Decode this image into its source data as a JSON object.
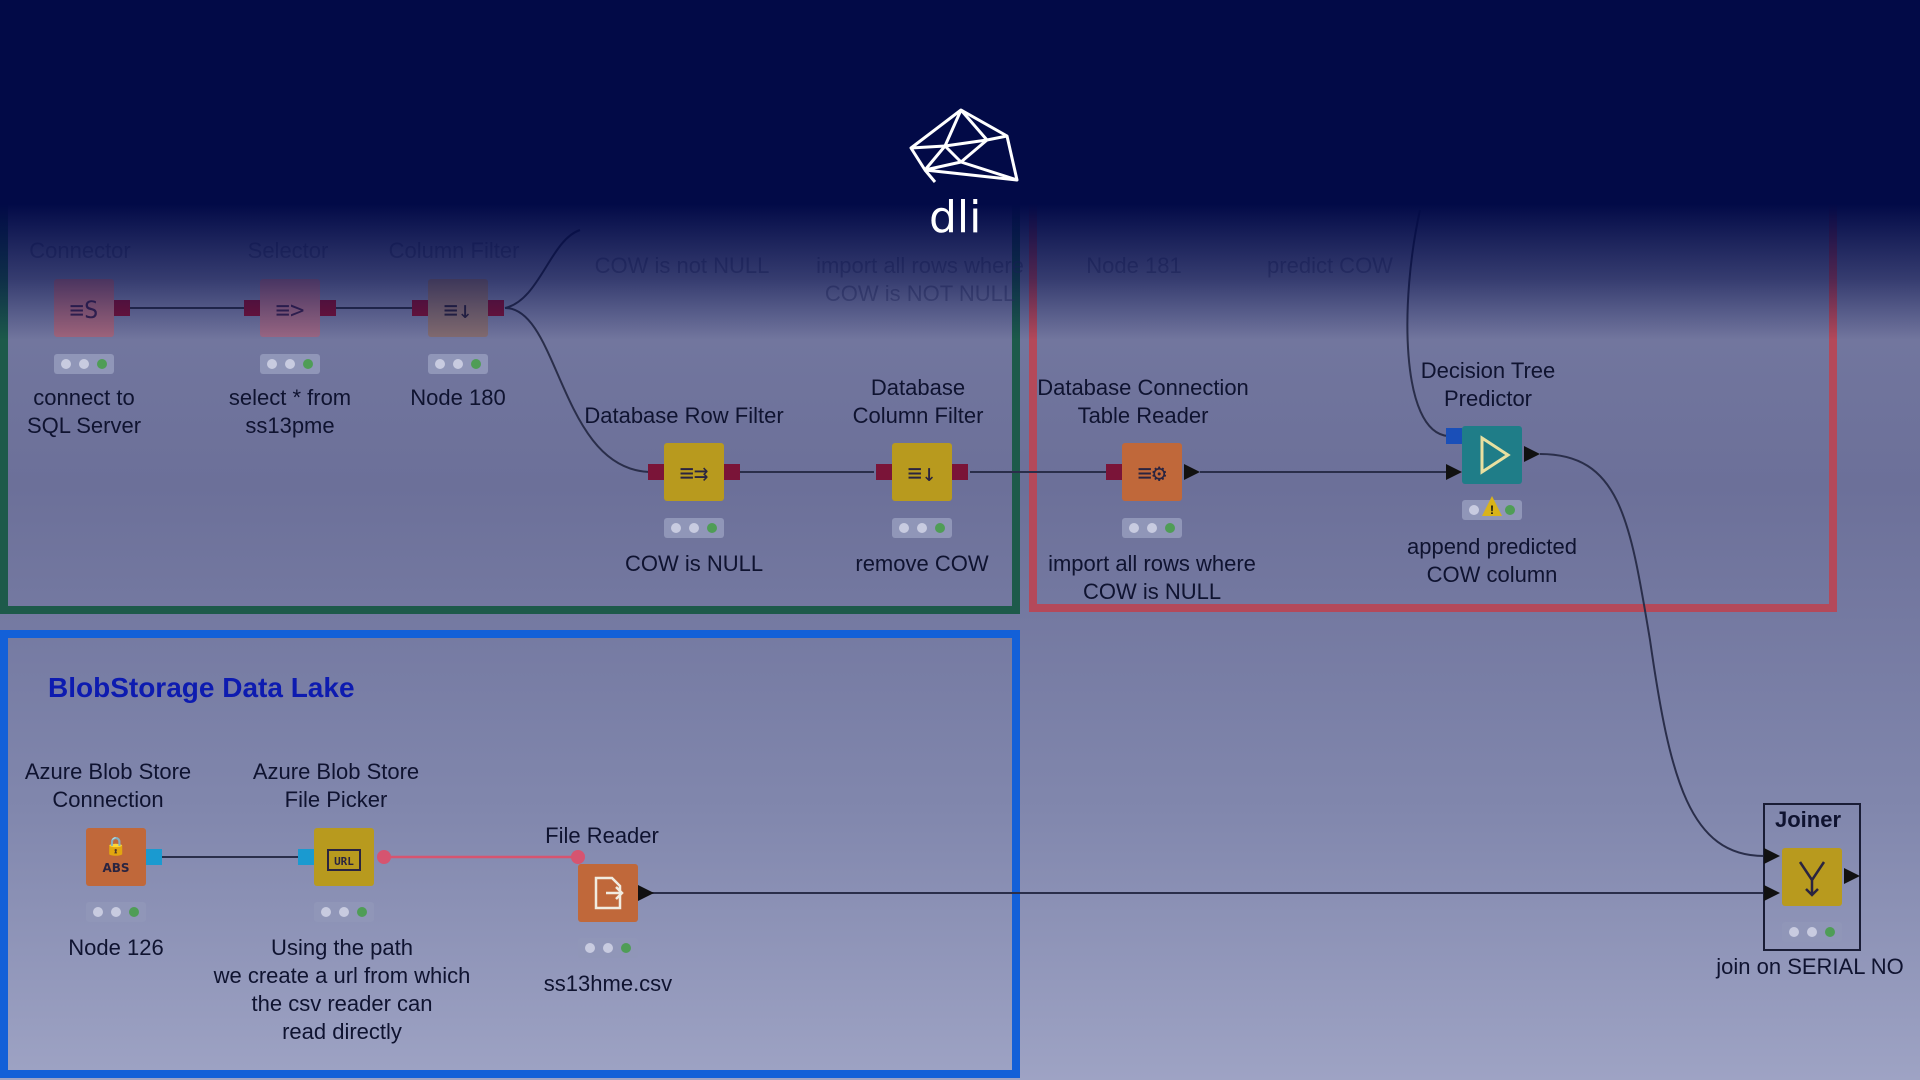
{
  "logo": {
    "text": "dli"
  },
  "groups": {
    "blob": {
      "title": "BlobStorage Data Lake"
    }
  },
  "nodes": {
    "n1": {
      "title": "Connector",
      "label": "connect to\nSQL Server",
      "icon": "database-connector-icon"
    },
    "n2": {
      "title": "Selector",
      "label": "select * from\nss13pme",
      "icon": "table-selector-icon"
    },
    "n3": {
      "title": "Column Filter",
      "label": "Node 180",
      "icon": "column-filter-icon"
    },
    "n4": {
      "title": "Database Row Filter",
      "label": "COW is NULL",
      "icon": "row-filter-icon"
    },
    "n5": {
      "title": "Database\nColumn Filter",
      "label": "remove COW",
      "icon": "column-filter-icon"
    },
    "n6": {
      "title": "Database Connection\nTable Reader",
      "label": "import all rows where\nCOW is NULL",
      "icon": "table-reader-icon"
    },
    "n7": {
      "title": "Decision Tree\nPredictor",
      "label": "append predicted\nCOW column",
      "icon": "predictor-icon"
    },
    "n8": {
      "title": "Azure Blob Store\nConnection",
      "label": "Node 126",
      "icon": "lock-icon"
    },
    "n9": {
      "title": "Azure Blob Store\nFile Picker",
      "label": "Using the path\nwe create a url from which\nthe csv reader can\nread directly",
      "icon": "url-icon"
    },
    "n10": {
      "title": "File Reader",
      "label": "ss13hme.csv",
      "icon": "file-reader-icon"
    },
    "n11": {
      "title": "Joiner",
      "label": "join on SERIAL NO",
      "icon": "joiner-icon"
    }
  },
  "faded_labels": {
    "f1": "COW is not NULL",
    "f2": "import all rows where\nCOW is NOT NULL",
    "f3": "Node 181",
    "f4": "predict COW"
  },
  "colors": {
    "background": "#7f84aa",
    "overlay": "#020a47",
    "green_group_border": "#1d5a4a",
    "red_group_border": "#b4495a",
    "blue_group_border": "#1360d8",
    "manipulator_node": "#b89a1e",
    "source_node": "#c0683a",
    "predictor_node": "#1f7d88",
    "db_port": "#7a1438"
  }
}
